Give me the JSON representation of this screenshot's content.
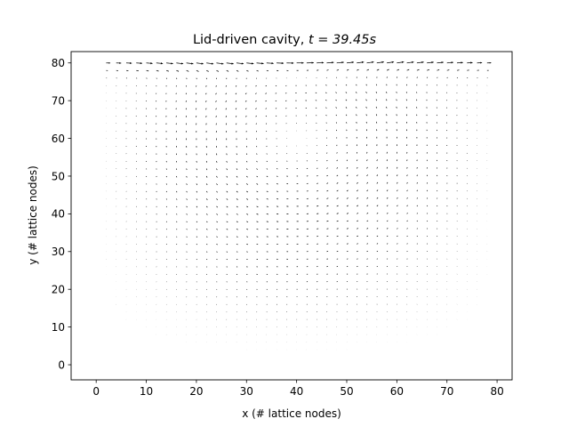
{
  "chart_data": {
    "type": "quiver",
    "title_prefix": "Lid-driven cavity, ",
    "title_time": "t = 39.45s",
    "xlabel": "x (# lattice nodes)",
    "ylabel": "y (# lattice nodes)",
    "xlim": [
      -5,
      83
    ],
    "ylim": [
      -4,
      83
    ],
    "xticks": [
      0,
      10,
      20,
      30,
      40,
      50,
      60,
      70,
      80
    ],
    "yticks": [
      0,
      10,
      20,
      30,
      40,
      50,
      60,
      70,
      80
    ],
    "grid": false,
    "lattice": {
      "nx": 80,
      "ny": 80,
      "spacing": 2
    },
    "lid_velocity": 1.0,
    "vortex_center": [
      40,
      60
    ],
    "arrow_color": "#000000"
  }
}
